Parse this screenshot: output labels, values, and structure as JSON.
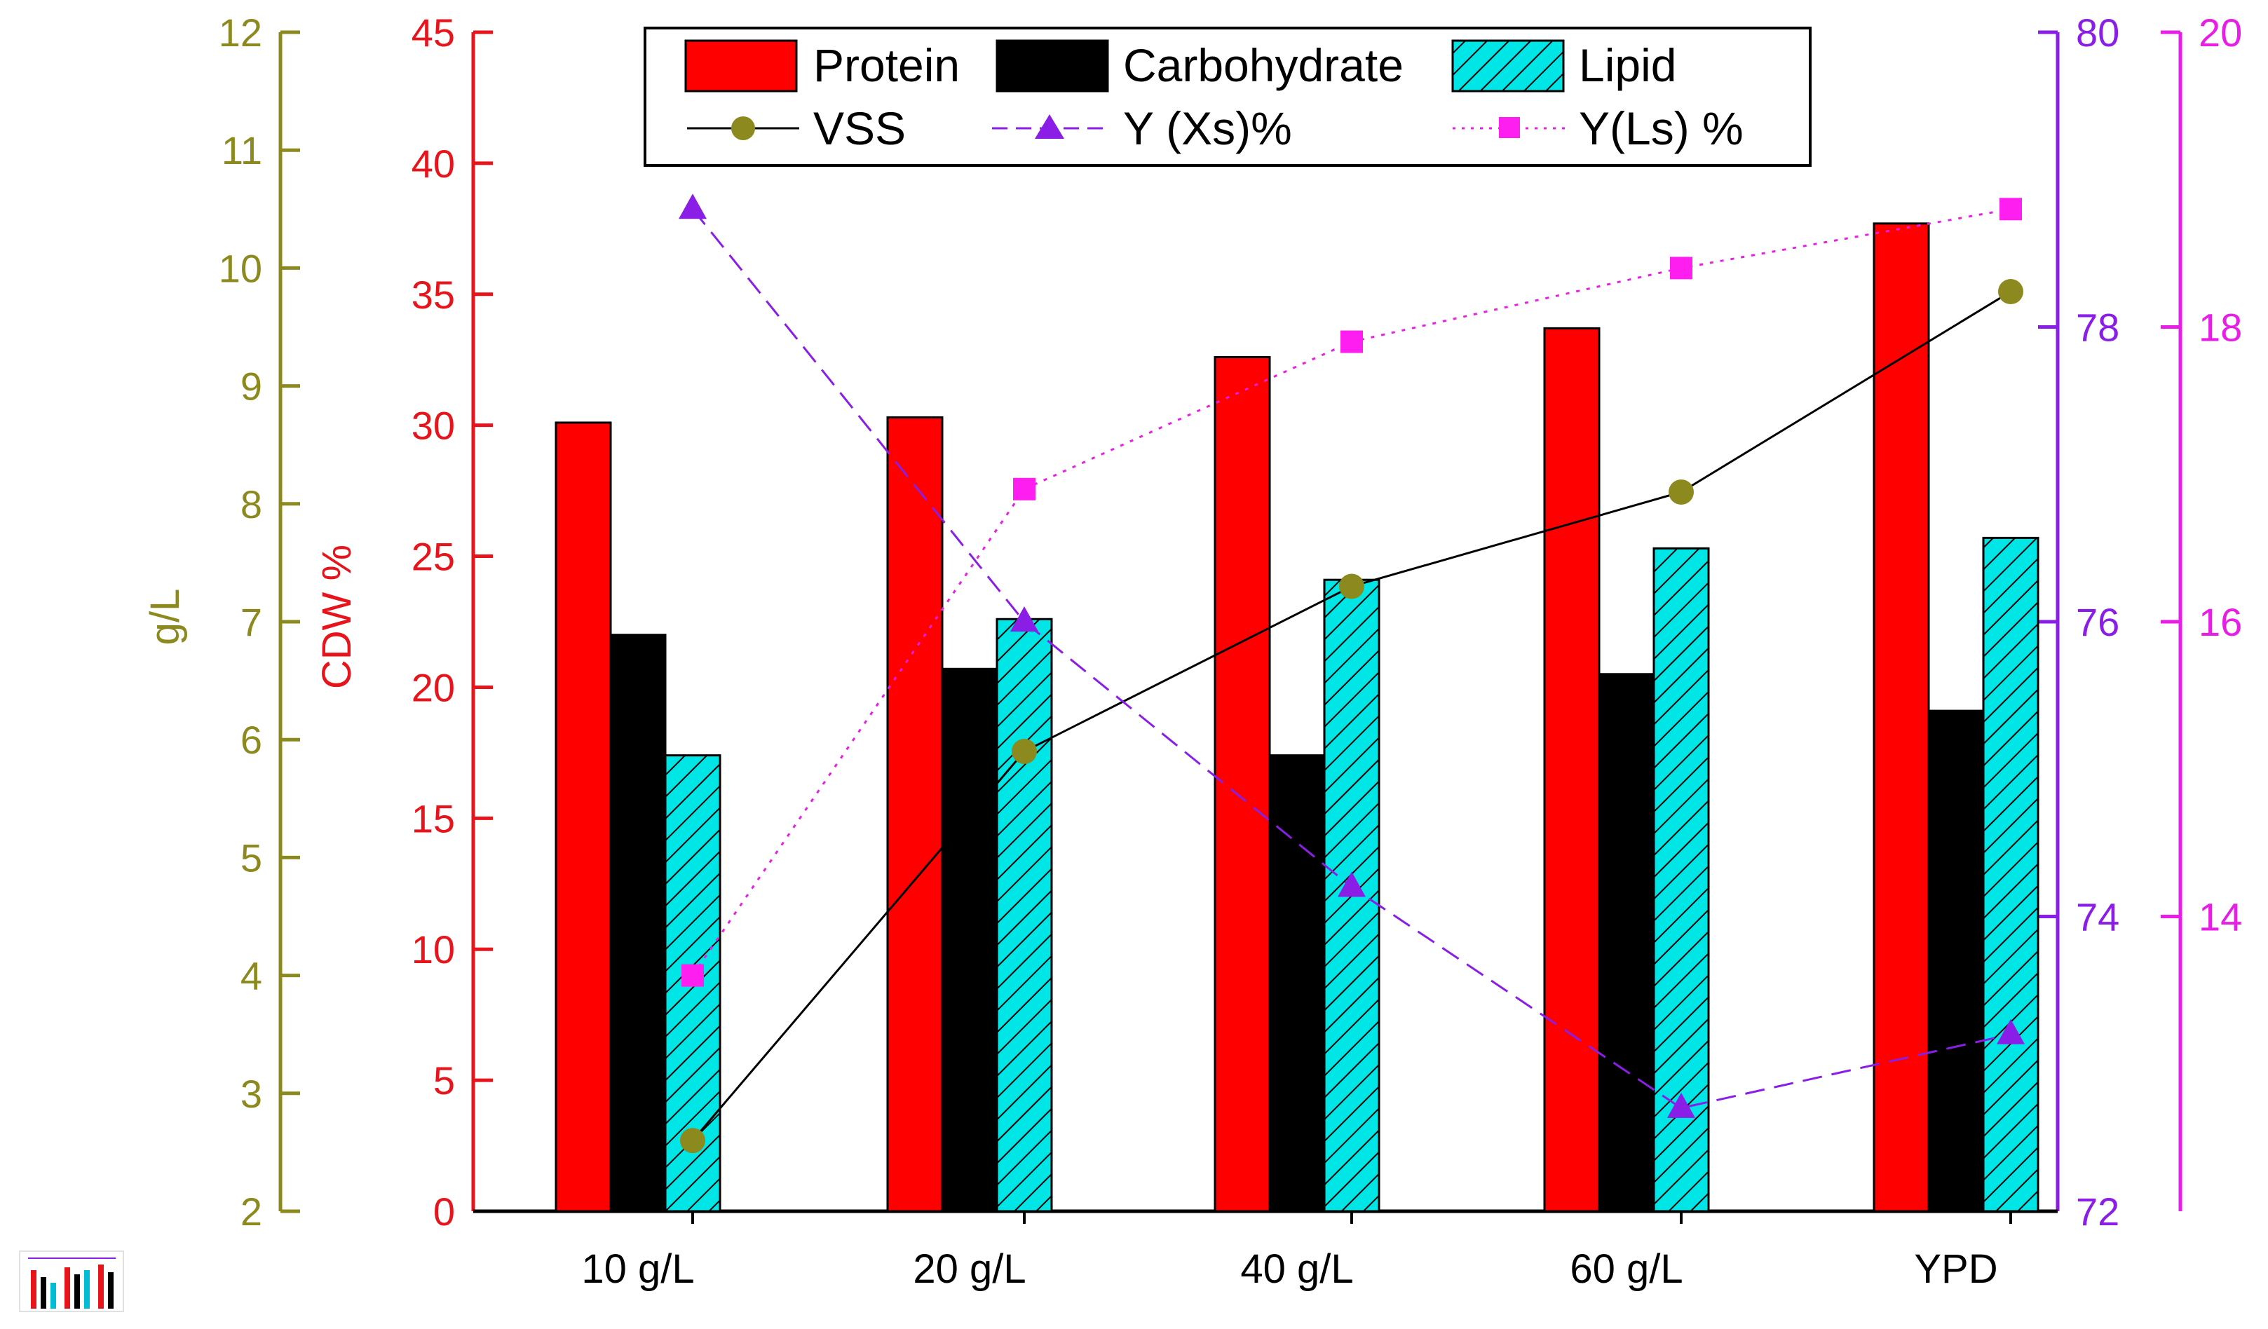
{
  "chart_data": {
    "type": "bar",
    "categories": [
      "10 g/L",
      "20 g/L",
      "40 g/L",
      "60 g/L",
      "YPD"
    ],
    "bars_axis": {
      "label": "CDW %",
      "range": [
        0,
        45
      ],
      "ticks": [
        0,
        5,
        10,
        15,
        20,
        25,
        30,
        35,
        40,
        45
      ],
      "color": "#e8141b"
    },
    "vss_axis": {
      "label": "g/L",
      "range": [
        2,
        12
      ],
      "ticks": [
        2,
        3,
        4,
        5,
        6,
        7,
        8,
        9,
        10,
        11,
        12
      ],
      "color": "#8c8a1e"
    },
    "yxs_axis": {
      "label": "",
      "range": [
        72,
        80
      ],
      "ticks": [
        72,
        74,
        76,
        78,
        80
      ],
      "color": "#8a1ee6"
    },
    "yls_axis": {
      "label": "",
      "range": [
        12,
        20
      ],
      "ticks": [
        14,
        16,
        18,
        20
      ],
      "color": "#e81ee6"
    },
    "bar_series": [
      {
        "name": "Protein",
        "values": [
          30.1,
          30.3,
          32.6,
          33.7,
          37.7
        ],
        "color": "#ff0000"
      },
      {
        "name": "Carbohydrate",
        "values": [
          22.0,
          20.7,
          17.4,
          20.5,
          19.1
        ],
        "color": "#000000"
      },
      {
        "name": "Lipid",
        "values": [
          17.4,
          22.6,
          24.1,
          25.3,
          25.7
        ],
        "color": "#00e6e6"
      }
    ],
    "line_series": [
      {
        "name": "VSS",
        "axis": "vss_axis",
        "values": [
          2.6,
          5.9,
          7.3,
          8.1,
          9.8
        ],
        "color": "#8c8a1e",
        "line_color": "#000000",
        "marker": "circle",
        "dash": "solid"
      },
      {
        "name": "Y (Xs)%",
        "axis": "yxs_axis",
        "values": [
          78.8,
          76.0,
          74.2,
          72.7,
          73.2
        ],
        "color": "#8a1ee6",
        "line_color": "#8a1ee6",
        "marker": "triangle",
        "dash": "dash"
      },
      {
        "name": "Y(Ls) %",
        "axis": "yls_axis",
        "values": [
          13.6,
          16.9,
          17.9,
          18.4,
          18.8
        ],
        "color": "#ff1ef0",
        "line_color": "#e81ee6",
        "marker": "square",
        "dash": "dot"
      }
    ],
    "legend": {
      "position": "top",
      "entries": [
        "Protein",
        "Carbohydrate",
        "Lipid",
        "VSS",
        "Y (Xs)%",
        "Y(Ls) %"
      ]
    }
  }
}
